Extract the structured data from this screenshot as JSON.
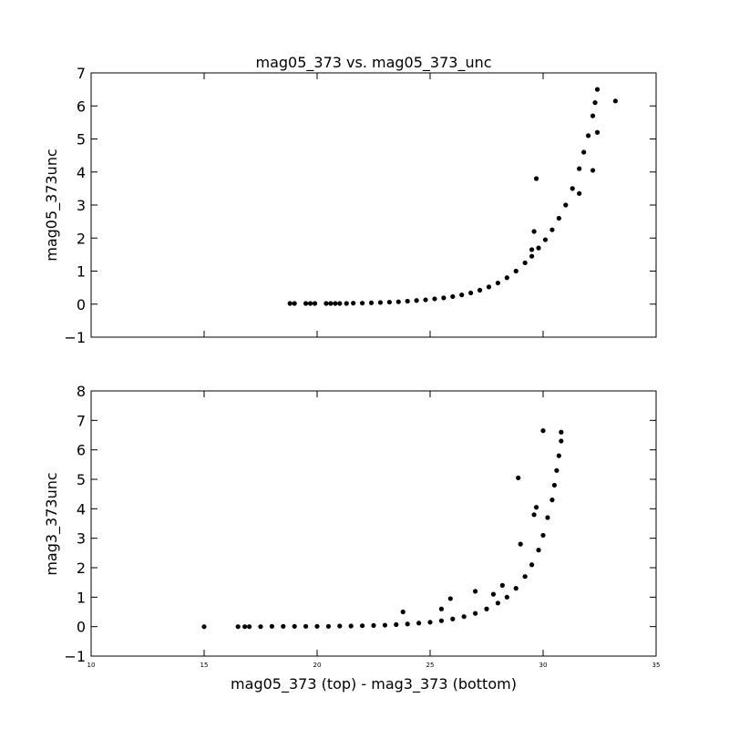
{
  "chart_data": [
    {
      "type": "scatter",
      "title": "mag05_373 vs. mag05_373_unc",
      "ylabel": "mag05_373unc",
      "xlabel": "",
      "xlim": [
        10,
        35
      ],
      "ylim": [
        -1,
        7
      ],
      "xticks": [
        10,
        15,
        20,
        25,
        30,
        35
      ],
      "yticks": [
        -1,
        0,
        1,
        2,
        3,
        4,
        5,
        6,
        7
      ],
      "yticklabels": [
        "−1",
        "0",
        "1",
        "2",
        "3",
        "4",
        "5",
        "6",
        "7"
      ],
      "show_xticklabels": false,
      "grid": false,
      "marker_color": "#000000",
      "points": [
        [
          18.8,
          0.02
        ],
        [
          19.0,
          0.02
        ],
        [
          19.5,
          0.02
        ],
        [
          19.7,
          0.02
        ],
        [
          19.9,
          0.02
        ],
        [
          20.4,
          0.02
        ],
        [
          20.6,
          0.02
        ],
        [
          20.8,
          0.02
        ],
        [
          21.0,
          0.02
        ],
        [
          21.3,
          0.02
        ],
        [
          21.6,
          0.03
        ],
        [
          22.0,
          0.03
        ],
        [
          22.4,
          0.04
        ],
        [
          22.8,
          0.05
        ],
        [
          23.2,
          0.06
        ],
        [
          23.6,
          0.07
        ],
        [
          24.0,
          0.09
        ],
        [
          24.4,
          0.11
        ],
        [
          24.8,
          0.13
        ],
        [
          25.2,
          0.16
        ],
        [
          25.6,
          0.19
        ],
        [
          26.0,
          0.23
        ],
        [
          26.4,
          0.28
        ],
        [
          26.8,
          0.34
        ],
        [
          27.2,
          0.42
        ],
        [
          27.6,
          0.52
        ],
        [
          28.0,
          0.64
        ],
        [
          28.4,
          0.8
        ],
        [
          28.8,
          1.0
        ],
        [
          29.2,
          1.25
        ],
        [
          29.5,
          1.45
        ],
        [
          29.8,
          1.7
        ],
        [
          30.1,
          1.95
        ],
        [
          30.4,
          2.25
        ],
        [
          30.7,
          2.6
        ],
        [
          31.0,
          3.0
        ],
        [
          31.3,
          3.5
        ],
        [
          31.6,
          4.1
        ],
        [
          31.8,
          4.6
        ],
        [
          32.0,
          5.1
        ],
        [
          32.2,
          5.7
        ],
        [
          32.3,
          6.1
        ],
        [
          32.4,
          6.5
        ],
        [
          29.7,
          3.8
        ],
        [
          29.6,
          2.2
        ],
        [
          29.5,
          1.65
        ],
        [
          31.6,
          3.35
        ],
        [
          32.2,
          4.05
        ],
        [
          32.4,
          5.2
        ],
        [
          33.2,
          6.15
        ]
      ]
    },
    {
      "type": "scatter",
      "title": "",
      "ylabel": "mag3_373unc",
      "xlabel": "mag05_373 (top) - mag3_373 (bottom)",
      "xlim": [
        10,
        35
      ],
      "ylim": [
        -1,
        8
      ],
      "xticks": [
        10,
        15,
        20,
        25,
        30,
        35
      ],
      "xticklabels": [
        "10",
        "15",
        "20",
        "25",
        "30",
        "35"
      ],
      "yticks": [
        -1,
        0,
        1,
        2,
        3,
        4,
        5,
        6,
        7,
        8
      ],
      "yticklabels": [
        "−1",
        "0",
        "1",
        "2",
        "3",
        "4",
        "5",
        "6",
        "7",
        "8"
      ],
      "show_xticklabels": true,
      "grid": false,
      "marker_color": "#000000",
      "points": [
        [
          15.0,
          0.0
        ],
        [
          16.5,
          0.0
        ],
        [
          16.8,
          0.0
        ],
        [
          17.0,
          0.0
        ],
        [
          17.5,
          0.0
        ],
        [
          18.0,
          0.01
        ],
        [
          18.5,
          0.01
        ],
        [
          19.0,
          0.01
        ],
        [
          19.5,
          0.01
        ],
        [
          20.0,
          0.01
        ],
        [
          20.5,
          0.01
        ],
        [
          21.0,
          0.02
        ],
        [
          21.5,
          0.02
        ],
        [
          22.0,
          0.03
        ],
        [
          22.5,
          0.04
        ],
        [
          23.0,
          0.05
        ],
        [
          23.5,
          0.07
        ],
        [
          24.0,
          0.09
        ],
        [
          24.5,
          0.12
        ],
        [
          25.0,
          0.15
        ],
        [
          25.5,
          0.2
        ],
        [
          26.0,
          0.26
        ],
        [
          26.5,
          0.34
        ],
        [
          27.0,
          0.45
        ],
        [
          27.5,
          0.6
        ],
        [
          28.0,
          0.8
        ],
        [
          28.4,
          1.0
        ],
        [
          28.8,
          1.3
        ],
        [
          29.2,
          1.7
        ],
        [
          29.5,
          2.1
        ],
        [
          29.8,
          2.6
        ],
        [
          30.0,
          3.1
        ],
        [
          30.2,
          3.7
        ],
        [
          30.4,
          4.3
        ],
        [
          30.5,
          4.8
        ],
        [
          30.6,
          5.3
        ],
        [
          30.7,
          5.8
        ],
        [
          30.8,
          6.3
        ],
        [
          30.8,
          6.6
        ],
        [
          30.0,
          6.65
        ],
        [
          28.9,
          5.05
        ],
        [
          23.8,
          0.5
        ],
        [
          25.5,
          0.6
        ],
        [
          25.9,
          0.95
        ],
        [
          27.0,
          1.2
        ],
        [
          27.8,
          1.1
        ],
        [
          28.2,
          1.4
        ],
        [
          29.6,
          3.8
        ],
        [
          29.0,
          2.8
        ],
        [
          29.7,
          4.05
        ]
      ]
    }
  ]
}
